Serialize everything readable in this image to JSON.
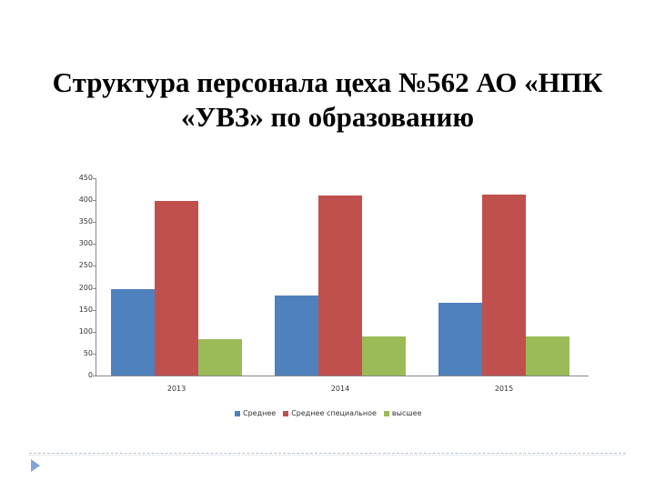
{
  "slide": {
    "title_line1": "Структура персонала цеха №562 АО «НПК",
    "title_line2": "«УВЗ» по образованию"
  },
  "chart_data": {
    "type": "bar",
    "title": "Структура персонала цеха №562 АО «НПК «УВЗ» по образованию",
    "categories": [
      "2013",
      "2014",
      "2015"
    ],
    "series": [
      {
        "name": "Среднее",
        "color": "#4f81bd",
        "values": [
          197,
          183,
          166
        ]
      },
      {
        "name": "Среднее специальное",
        "color": "#c0504d",
        "values": [
          398,
          411,
          413
        ]
      },
      {
        "name": "высшее",
        "color": "#9bbb59",
        "values": [
          83,
          89,
          89
        ]
      }
    ],
    "xlabel": "",
    "ylabel": "",
    "ylim": [
      0,
      450
    ],
    "yticks": [
      "0",
      "50",
      "100",
      "150",
      "200",
      "250",
      "300",
      "350",
      "400",
      "450"
    ],
    "grid": false,
    "legend_position": "bottom"
  }
}
